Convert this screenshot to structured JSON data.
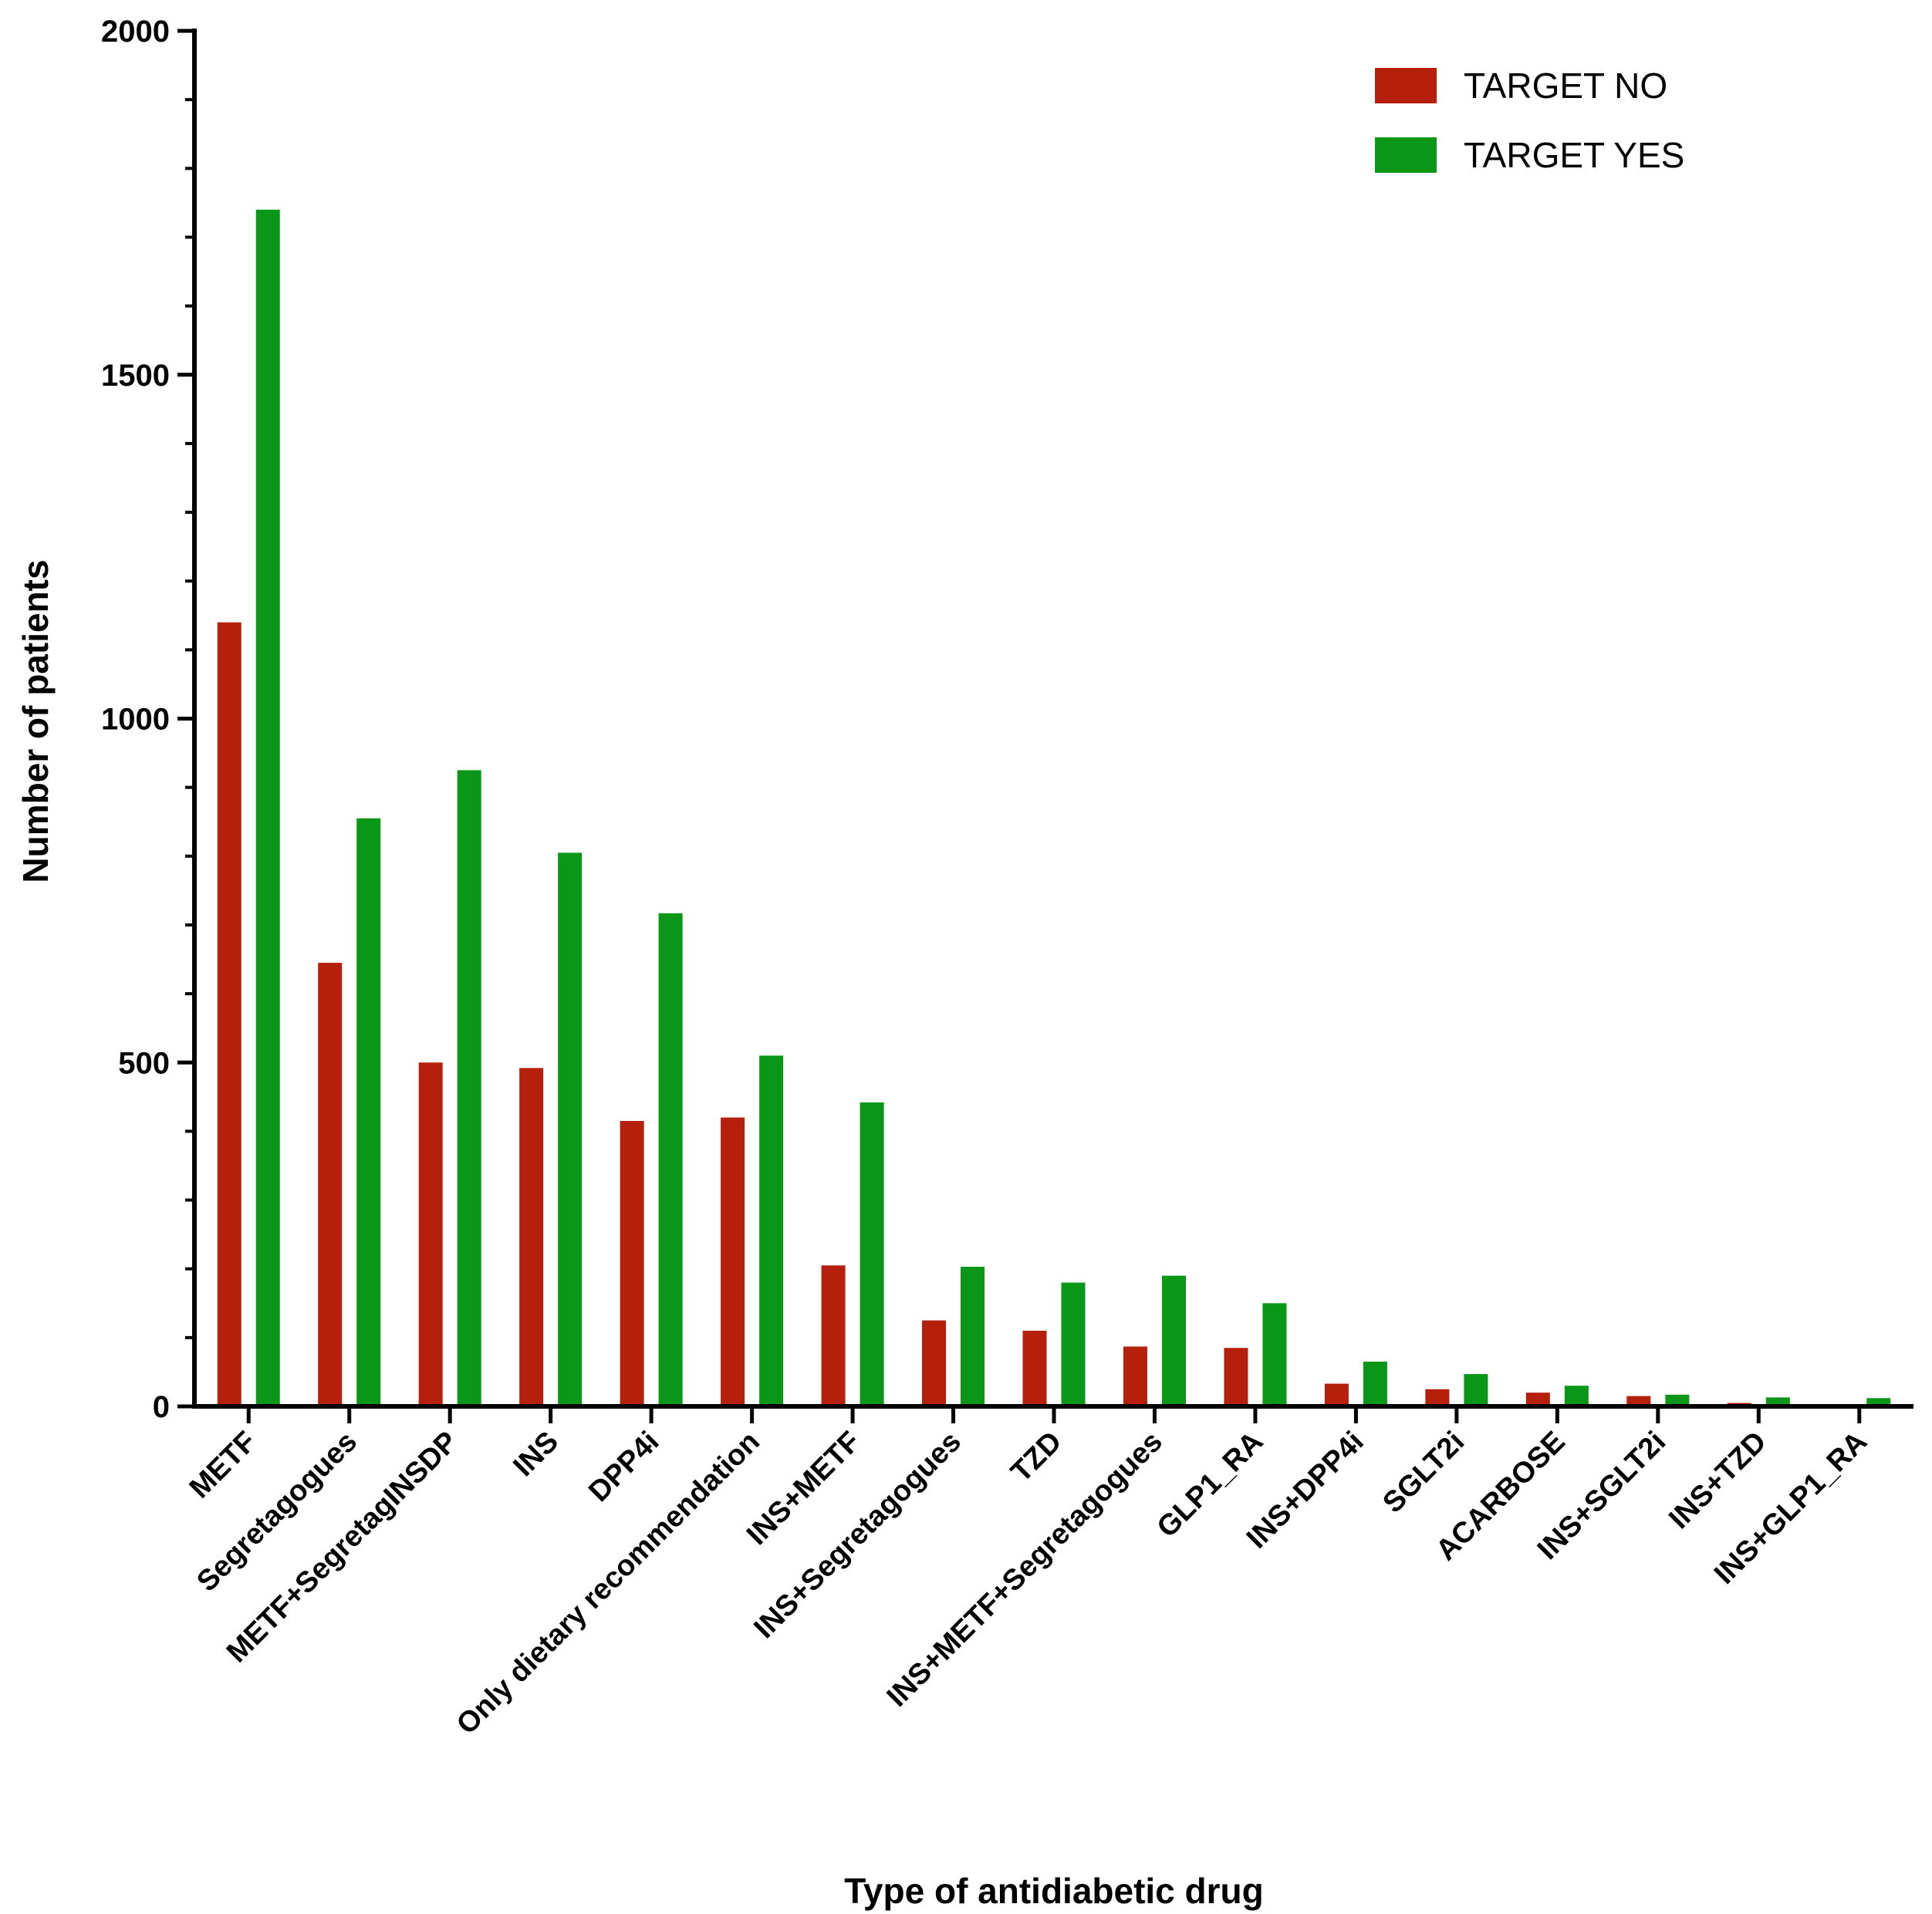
{
  "chart_data": {
    "type": "bar",
    "title": "",
    "xlabel": "Type of antidiabetic drug",
    "ylabel": "Number of patients",
    "ylim": [
      0,
      2000
    ],
    "yticks": [
      0,
      500,
      1000,
      1500,
      2000
    ],
    "categories": [
      "METF",
      "Segretagogues",
      "METF+SegretagINSDP",
      "INS",
      "DPP4i",
      "Only dietary recommendation",
      "INS+METF",
      "INS+Segretagogues",
      "TZD",
      "INS+METF+Segretagogues",
      "GLP1_RA",
      "INS+DPP4i",
      "SGLT2i",
      "ACARBOSE",
      "INS+SGLT2i",
      "INS+TZD",
      "INS+GLP1_RA"
    ],
    "series": [
      {
        "name": "TARGET NO",
        "color": "#b5200d",
        "values": [
          1140,
          645,
          500,
          492,
          415,
          420,
          205,
          125,
          110,
          87,
          85,
          33,
          25,
          20,
          15,
          5,
          0
        ]
      },
      {
        "name": "TARGET YES",
        "color": "#0a9616",
        "values": [
          1740,
          855,
          925,
          805,
          717,
          510,
          442,
          203,
          180,
          190,
          150,
          65,
          47,
          30,
          17,
          13,
          12
        ]
      }
    ],
    "legend_position": "top-right",
    "grid": false
  }
}
